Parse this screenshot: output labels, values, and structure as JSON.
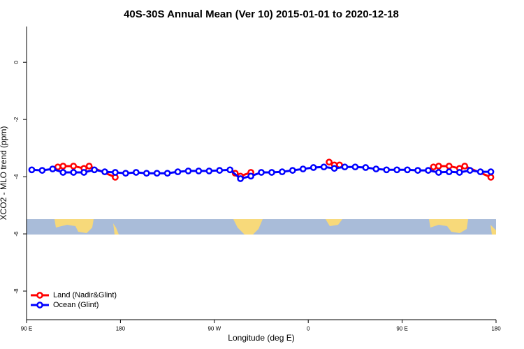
{
  "chart_data": {
    "type": "line",
    "title": "40S-30S Annual Mean (Ver 10)   2015-01-01 to 2020-12-18",
    "x_label": "Longitude (deg E)",
    "y_label": "XCO2 - MLO trend (ppm)",
    "xlim": [
      90,
      540
    ],
    "xticks": [
      {
        "value": 90,
        "label": "90 E"
      },
      {
        "value": 180,
        "label": "180"
      },
      {
        "value": 270,
        "label": "90 W"
      },
      {
        "value": 360,
        "label": "0"
      },
      {
        "value": 450,
        "label": "90 E"
      },
      {
        "value": 540,
        "label": "180"
      }
    ],
    "ylim": [
      -9,
      1.25
    ],
    "yticks": [
      0,
      -2,
      -4,
      -6,
      -8
    ],
    "legend": "bottom-left",
    "series": [
      {
        "name": "Land (Nadir&Glint)",
        "color": "#ff0000",
        "x": [
          120,
          125,
          135,
          145,
          150,
          175,
          230,
          290,
          295,
          305,
          340,
          380,
          385,
          390,
          440,
          480,
          485,
          495,
          505,
          510,
          535
        ],
        "values": [
          -3.66,
          -3.63,
          -3.63,
          -3.71,
          -3.63,
          -4.02,
          null,
          -3.88,
          -3.98,
          -3.85,
          null,
          -3.49,
          -3.59,
          -3.59,
          null,
          -3.66,
          -3.63,
          -3.63,
          -3.71,
          -3.63,
          -4.02
        ]
      },
      {
        "name": "Ocean (Glint)",
        "color": "#0000ff",
        "x": [
          95,
          105,
          115,
          125,
          135,
          145,
          155,
          165,
          175,
          185,
          195,
          205,
          215,
          225,
          235,
          245,
          255,
          265,
          275,
          285,
          295,
          305,
          315,
          325,
          335,
          345,
          355,
          365,
          375,
          385,
          395,
          405,
          415,
          425,
          435,
          445,
          455,
          465,
          475,
          485,
          495,
          505,
          515,
          525,
          535
        ],
        "values": [
          -3.76,
          -3.78,
          -3.73,
          -3.85,
          -3.85,
          -3.85,
          -3.76,
          -3.83,
          -3.85,
          -3.88,
          -3.85,
          -3.88,
          -3.88,
          -3.88,
          -3.83,
          -3.8,
          -3.8,
          -3.8,
          -3.78,
          -3.76,
          -4.07,
          -3.98,
          -3.85,
          -3.85,
          -3.83,
          -3.78,
          -3.73,
          -3.68,
          -3.66,
          -3.71,
          -3.66,
          -3.66,
          -3.68,
          -3.73,
          -3.76,
          -3.76,
          -3.76,
          -3.78,
          -3.78,
          -3.85,
          -3.83,
          -3.85,
          -3.78,
          -3.83,
          -3.83
        ]
      }
    ]
  }
}
